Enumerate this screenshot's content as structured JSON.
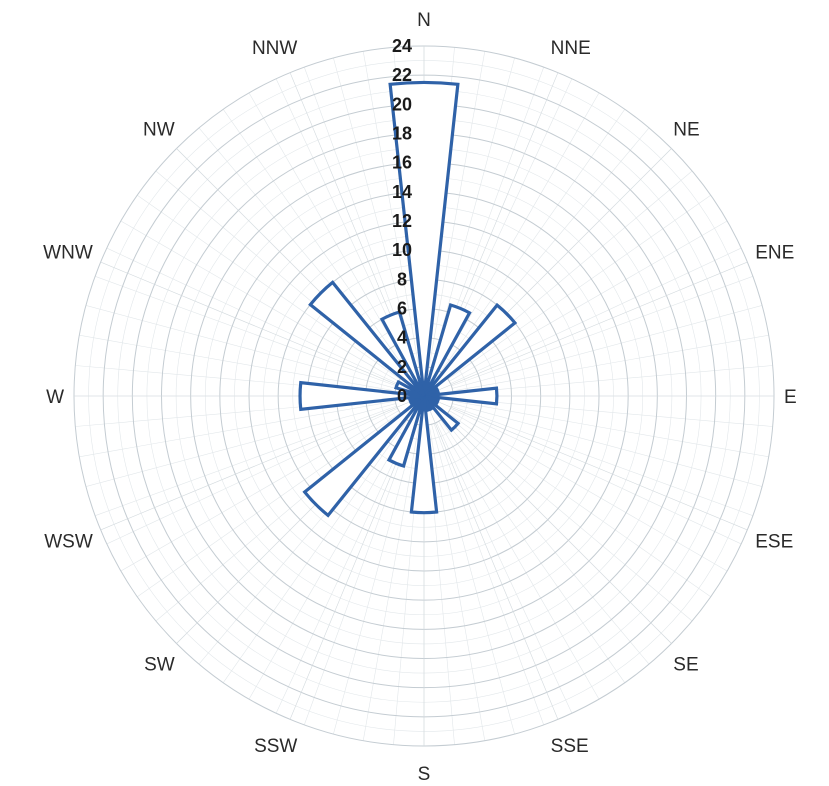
{
  "chart_data": {
    "type": "radar",
    "subtype": "wind-rose",
    "title": "",
    "directions": [
      "N",
      "NNE",
      "NE",
      "ENE",
      "E",
      "ESE",
      "SE",
      "SSE",
      "S",
      "SSW",
      "SW",
      "WSW",
      "W",
      "WNW",
      "NW",
      "NNW"
    ],
    "series": [
      {
        "values": [
          21.5,
          6.5,
          8.0,
          1.0,
          5.0,
          1.0,
          3.0,
          1.0,
          8.0,
          5.0,
          10.5,
          1.0,
          8.5,
          2.0,
          10.0,
          6.0
        ]
      }
    ],
    "rlim": [
      0,
      24
    ],
    "r_ticks": [
      "0",
      "2",
      "4",
      "6",
      "8",
      "10",
      "12",
      "14",
      "16",
      "18",
      "20",
      "22",
      "24"
    ],
    "grid": true,
    "legend": "none",
    "colors": {
      "series": "#2f62a8",
      "grid": "#c4ccd2",
      "text": "#2a2a2a"
    }
  }
}
